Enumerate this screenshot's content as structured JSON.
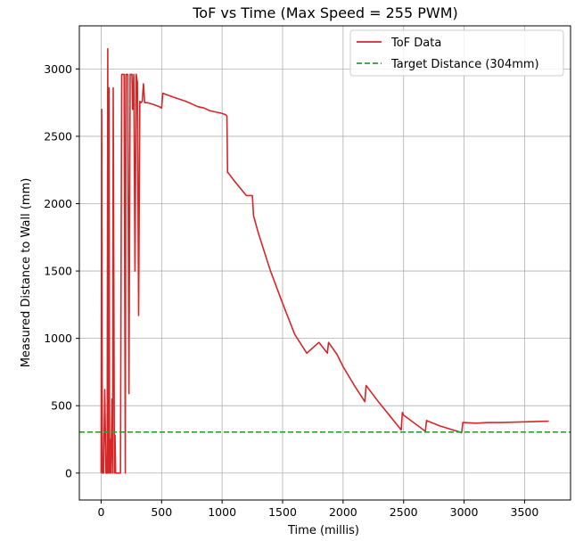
{
  "chart_data": {
    "type": "line",
    "title": "ToF vs Time (Max Speed = 255 PWM)",
    "xlabel": "Time (millis)",
    "ylabel": "Measured Distance to Wall (mm)",
    "xlim": [
      -180,
      3880
    ],
    "ylim": [
      -200,
      3320
    ],
    "xticks": [
      0,
      500,
      1000,
      1500,
      2000,
      2500,
      3000,
      3500
    ],
    "yticks": [
      0,
      500,
      1000,
      1500,
      2000,
      2500,
      3000
    ],
    "grid": true,
    "legend_position": "top-right",
    "colors": {
      "tof": "#d62728",
      "target": "#2ca02c",
      "grid": "#b0b0b0",
      "axes": "#000000"
    },
    "series": [
      {
        "name": "ToF Data",
        "style": "solid",
        "x": [
          0,
          5,
          10,
          20,
          30,
          40,
          50,
          55,
          60,
          65,
          70,
          75,
          80,
          90,
          95,
          100,
          110,
          115,
          120,
          130,
          140,
          150,
          160,
          170,
          180,
          190,
          200,
          205,
          210,
          220,
          230,
          240,
          250,
          255,
          260,
          270,
          280,
          290,
          300,
          310,
          320,
          330,
          340,
          350,
          360,
          380,
          420,
          480,
          500,
          510,
          600,
          700,
          800,
          850,
          900,
          1000,
          1030,
          1040,
          1045,
          1050,
          1100,
          1200,
          1250,
          1260,
          1300,
          1400,
          1500,
          1600,
          1700,
          1800,
          1870,
          1880,
          1950,
          2000,
          2100,
          2180,
          2190,
          2300,
          2400,
          2480,
          2490,
          2500,
          2680,
          2690,
          2800,
          2980,
          2990,
          3100,
          3200,
          3300,
          3500,
          3700
        ],
        "values": [
          0,
          2700,
          0,
          0,
          620,
          0,
          0,
          3150,
          0,
          2860,
          0,
          250,
          0,
          550,
          0,
          2860,
          0,
          280,
          0,
          0,
          0,
          0,
          0,
          2960,
          2960,
          2960,
          0,
          2960,
          2960,
          2960,
          590,
          2960,
          2960,
          2960,
          2700,
          2960,
          1500,
          2960,
          2900,
          1170,
          2760,
          2750,
          2760,
          2890,
          2750,
          2750,
          2740,
          2720,
          2710,
          2820,
          2790,
          2760,
          2720,
          2710,
          2690,
          2670,
          2660,
          2650,
          2230,
          2230,
          2170,
          2060,
          2060,
          1910,
          1780,
          1500,
          1260,
          1030,
          890,
          970,
          890,
          970,
          880,
          790,
          640,
          530,
          650,
          520,
          410,
          320,
          450,
          430,
          310,
          390,
          350,
          300,
          375,
          370,
          375,
          375,
          380,
          385
        ]
      },
      {
        "name": "Target Distance (304mm)",
        "style": "dashed",
        "x": [
          -180,
          3880
        ],
        "values": [
          304,
          304
        ]
      }
    ]
  }
}
